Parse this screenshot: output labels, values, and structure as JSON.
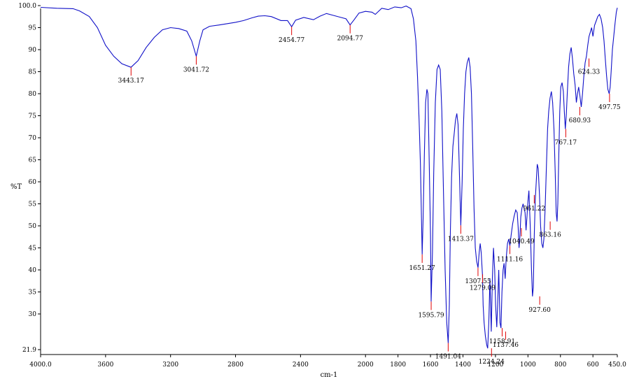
{
  "chart_data": {
    "type": "line",
    "title": "",
    "xlabel": "cm-1",
    "ylabel": "%T",
    "xlim": [
      4000.0,
      450.0
    ],
    "ylim": [
      21.9,
      100.0
    ],
    "x_reversed": true,
    "grid": false,
    "xticks": [
      {
        "value": 4000,
        "label": "4000.0"
      },
      {
        "value": 3600,
        "label": "3600"
      },
      {
        "value": 3200,
        "label": "3200"
      },
      {
        "value": 2800,
        "label": "2800"
      },
      {
        "value": 2400,
        "label": "2400"
      },
      {
        "value": 2000,
        "label": "2000"
      },
      {
        "value": 1800,
        "label": "1800"
      },
      {
        "value": 1600,
        "label": "1600"
      },
      {
        "value": 1400,
        "label": "1400"
      },
      {
        "value": 1200,
        "label": "1200"
      },
      {
        "value": 1000,
        "label": "1000"
      },
      {
        "value": 800,
        "label": "800"
      },
      {
        "value": 600,
        "label": "600"
      },
      {
        "value": 450,
        "label": "450.0"
      }
    ],
    "yticks": [
      {
        "value": 100.0,
        "label": "100.0"
      },
      {
        "value": 95,
        "label": "95"
      },
      {
        "value": 90,
        "label": "90"
      },
      {
        "value": 85,
        "label": "85"
      },
      {
        "value": 80,
        "label": "80"
      },
      {
        "value": 75,
        "label": "75"
      },
      {
        "value": 70,
        "label": "70"
      },
      {
        "value": 65,
        "label": "65"
      },
      {
        "value": 60,
        "label": "60"
      },
      {
        "value": 55,
        "label": "55"
      },
      {
        "value": 50,
        "label": "50"
      },
      {
        "value": 45,
        "label": "45"
      },
      {
        "value": 40,
        "label": "40"
      },
      {
        "value": 35,
        "label": "35"
      },
      {
        "value": 30,
        "label": "30"
      },
      {
        "value": 21.9,
        "label": "21.9"
      }
    ],
    "series": [
      {
        "color": "#1010c8",
        "points": [
          [
            4000,
            99.6
          ],
          [
            3900,
            99.4
          ],
          [
            3800,
            99.3
          ],
          [
            3760,
            98.8
          ],
          [
            3700,
            97.5
          ],
          [
            3650,
            95.0
          ],
          [
            3600,
            91.0
          ],
          [
            3550,
            88.5
          ],
          [
            3500,
            86.8
          ],
          [
            3443.17,
            86.0
          ],
          [
            3400,
            87.5
          ],
          [
            3350,
            90.5
          ],
          [
            3300,
            92.8
          ],
          [
            3250,
            94.5
          ],
          [
            3200,
            95.0
          ],
          [
            3150,
            94.8
          ],
          [
            3100,
            94.2
          ],
          [
            3070,
            92.0
          ],
          [
            3041.72,
            88.5
          ],
          [
            3020,
            92.0
          ],
          [
            3000,
            94.5
          ],
          [
            2960,
            95.3
          ],
          [
            2900,
            95.6
          ],
          [
            2850,
            95.9
          ],
          [
            2800,
            96.2
          ],
          [
            2750,
            96.6
          ],
          [
            2700,
            97.2
          ],
          [
            2660,
            97.6
          ],
          [
            2620,
            97.7
          ],
          [
            2580,
            97.5
          ],
          [
            2520,
            96.6
          ],
          [
            2480,
            96.6
          ],
          [
            2454.77,
            95.2
          ],
          [
            2430,
            96.7
          ],
          [
            2380,
            97.3
          ],
          [
            2320,
            96.8
          ],
          [
            2280,
            97.6
          ],
          [
            2240,
            98.2
          ],
          [
            2200,
            97.8
          ],
          [
            2160,
            97.4
          ],
          [
            2120,
            97.0
          ],
          [
            2094.77,
            95.6
          ],
          [
            2070,
            96.8
          ],
          [
            2040,
            98.3
          ],
          [
            2000,
            98.7
          ],
          [
            1960,
            98.5
          ],
          [
            1940,
            98.0
          ],
          [
            1900,
            99.4
          ],
          [
            1860,
            99.1
          ],
          [
            1820,
            99.7
          ],
          [
            1780,
            99.5
          ],
          [
            1750,
            99.9
          ],
          [
            1720,
            99.3
          ],
          [
            1705,
            97.0
          ],
          [
            1690,
            92.0
          ],
          [
            1680,
            84.0
          ],
          [
            1670,
            74.0
          ],
          [
            1662,
            64.0
          ],
          [
            1651.27,
            43.5
          ],
          [
            1645,
            52.0
          ],
          [
            1638,
            66.0
          ],
          [
            1630,
            78.0
          ],
          [
            1622,
            81.0
          ],
          [
            1616,
            80.0
          ],
          [
            1608,
            65.0
          ],
          [
            1600,
            48.0
          ],
          [
            1595.79,
            32.8
          ],
          [
            1588,
            44.0
          ],
          [
            1580,
            62.0
          ],
          [
            1570,
            78.0
          ],
          [
            1560,
            85.5
          ],
          [
            1550,
            86.5
          ],
          [
            1540,
            85.5
          ],
          [
            1530,
            76.0
          ],
          [
            1520,
            58.0
          ],
          [
            1510,
            40.0
          ],
          [
            1500,
            28.0
          ],
          [
            1491.04,
            23.4
          ],
          [
            1484,
            32.0
          ],
          [
            1478,
            48.0
          ],
          [
            1470,
            61.0
          ],
          [
            1462,
            68.0
          ],
          [
            1454,
            71.0
          ],
          [
            1446,
            74.0
          ],
          [
            1438,
            75.5
          ],
          [
            1430,
            73.0
          ],
          [
            1424,
            65.0
          ],
          [
            1413.37,
            50.1
          ],
          [
            1405,
            60.0
          ],
          [
            1398,
            72.0
          ],
          [
            1390,
            80.0
          ],
          [
            1382,
            85.0
          ],
          [
            1374,
            87.0
          ],
          [
            1364,
            88.2
          ],
          [
            1356,
            86.0
          ],
          [
            1348,
            80.0
          ],
          [
            1340,
            68.0
          ],
          [
            1332,
            54.0
          ],
          [
            1324,
            45.0
          ],
          [
            1316,
            42.0
          ],
          [
            1307.55,
            40.5
          ],
          [
            1300,
            44.0
          ],
          [
            1294,
            46.0
          ],
          [
            1288,
            44.0
          ],
          [
            1280,
            39.0
          ],
          [
            1276,
            32.0
          ],
          [
            1270,
            28.0
          ],
          [
            1262,
            25.0
          ],
          [
            1254,
            23.0
          ],
          [
            1248,
            22.2
          ],
          [
            1241,
            28.0
          ],
          [
            1234,
            38.0
          ],
          [
            1226,
            26.0
          ],
          [
            1219,
            38.0
          ],
          [
            1212,
            45.0
          ],
          [
            1205,
            40.0
          ],
          [
            1199,
            32.0
          ],
          [
            1192,
            27.0
          ],
          [
            1186,
            33.0
          ],
          [
            1180,
            40.0
          ],
          [
            1172,
            28.0
          ],
          [
            1166,
            26.8
          ],
          [
            1160,
            35.0
          ],
          [
            1153,
            40.0
          ],
          [
            1147,
            41.5
          ],
          [
            1140,
            38.0
          ],
          [
            1134,
            42.5
          ],
          [
            1126,
            46.0
          ],
          [
            1118,
            47.0
          ],
          [
            1111.16,
            45.5
          ],
          [
            1103,
            48.0
          ],
          [
            1094,
            50.5
          ],
          [
            1085,
            52.2
          ],
          [
            1075,
            53.6
          ],
          [
            1066,
            53.0
          ],
          [
            1060,
            49.5
          ],
          [
            1055,
            45.0
          ],
          [
            1050,
            47.0
          ],
          [
            1044,
            52.0
          ],
          [
            1037,
            54.0
          ],
          [
            1030,
            55.0
          ],
          [
            1024,
            54.0
          ],
          [
            1018,
            53.0
          ],
          [
            1012,
            49.0
          ],
          [
            1006,
            52.0
          ],
          [
            1000,
            55.5
          ],
          [
            994,
            58.0
          ],
          [
            986,
            50.0
          ],
          [
            978,
            40.0
          ],
          [
            972,
            34.0
          ],
          [
            967,
            36.0
          ],
          [
            961,
            48.0
          ],
          [
            955,
            56.0
          ],
          [
            949,
            60.0
          ],
          [
            943,
            64.0
          ],
          [
            937,
            63.0
          ],
          [
            929,
            57.0
          ],
          [
            922,
            50.0
          ],
          [
            915,
            46.0
          ],
          [
            908,
            45.0
          ],
          [
            902,
            47.0
          ],
          [
            894,
            54.0
          ],
          [
            886,
            64.0
          ],
          [
            879,
            72.0
          ],
          [
            872,
            76.0
          ],
          [
            864,
            79.0
          ],
          [
            856,
            80.5
          ],
          [
            848,
            78.0
          ],
          [
            840,
            72.0
          ],
          [
            832,
            62.0
          ],
          [
            826,
            53.0
          ],
          [
            821,
            51.0
          ],
          [
            816,
            55.0
          ],
          [
            810,
            66.0
          ],
          [
            804,
            76.0
          ],
          [
            798,
            81.5
          ],
          [
            790,
            82.5
          ],
          [
            782,
            80.5
          ],
          [
            776,
            76.0
          ],
          [
            770,
            72.0
          ],
          [
            764,
            75.0
          ],
          [
            758,
            80.0
          ],
          [
            750,
            86.0
          ],
          [
            742,
            89.0
          ],
          [
            734,
            90.5
          ],
          [
            726,
            88.0
          ],
          [
            718,
            84.5
          ],
          [
            710,
            82.0
          ],
          [
            702,
            78.0
          ],
          [
            695,
            80.0
          ],
          [
            688,
            81.5
          ],
          [
            680,
            79.5
          ],
          [
            672,
            77.0
          ],
          [
            664,
            80.0
          ],
          [
            656,
            84.0
          ],
          [
            648,
            87.0
          ],
          [
            640,
            88.5
          ],
          [
            632,
            91.0
          ],
          [
            624,
            93.0
          ],
          [
            616,
            94.0
          ],
          [
            608,
            95.0
          ],
          [
            600,
            93.0
          ],
          [
            590,
            95.5
          ],
          [
            580,
            96.5
          ],
          [
            570,
            97.5
          ],
          [
            560,
            98.0
          ],
          [
            550,
            97.0
          ],
          [
            540,
            95.0
          ],
          [
            532,
            92.0
          ],
          [
            524,
            88.0
          ],
          [
            516,
            84.0
          ],
          [
            508,
            81.0
          ],
          [
            500,
            80.0
          ],
          [
            494,
            81.5
          ],
          [
            488,
            85.0
          ],
          [
            480,
            90.0
          ],
          [
            472,
            93.0
          ],
          [
            464,
            96.0
          ],
          [
            456,
            98.5
          ],
          [
            450,
            99.5
          ]
        ]
      }
    ],
    "peaks": [
      {
        "x": 3443.17,
        "y": 86.0,
        "label": "3443.17"
      },
      {
        "x": 3041.72,
        "y": 88.5,
        "label": "3041.72"
      },
      {
        "x": 2454.77,
        "y": 95.2,
        "label": "2454.77"
      },
      {
        "x": 2094.77,
        "y": 95.6,
        "label": "2094.77"
      },
      {
        "x": 1651.27,
        "y": 43.5,
        "label": "1651.27"
      },
      {
        "x": 1595.79,
        "y": 32.8,
        "label": "1595.79"
      },
      {
        "x": 1491.04,
        "y": 23.4,
        "label": "1491.04"
      },
      {
        "x": 1413.37,
        "y": 50.1,
        "label": "1413.37"
      },
      {
        "x": 1307.55,
        "y": 40.5,
        "label": "1307.55"
      },
      {
        "x": 1279.09,
        "y": 39.0,
        "label": "1279.09"
      },
      {
        "x": 1224.24,
        "y": 22.2,
        "label": "1224.24"
      },
      {
        "x": 1158.91,
        "y": 26.8,
        "label": "1158.91"
      },
      {
        "x": 1137.46,
        "y": 26.0,
        "label": "1137.46"
      },
      {
        "x": 1111.16,
        "y": 45.5,
        "label": "1111.16"
      },
      {
        "x": 1040.49,
        "y": 49.5,
        "label": "1040.49"
      },
      {
        "x": 961.22,
        "y": 57.0,
        "label": "961.22"
      },
      {
        "x": 927.6,
        "y": 34.0,
        "label": "927.60"
      },
      {
        "x": 863.16,
        "y": 51.0,
        "label": "863.16"
      },
      {
        "x": 767.17,
        "y": 72.0,
        "label": "767.17"
      },
      {
        "x": 680.93,
        "y": 77.0,
        "label": "680.93"
      },
      {
        "x": 624.33,
        "y": 88.0,
        "label": "624.33"
      },
      {
        "x": 497.75,
        "y": 80.0,
        "label": "497.75"
      }
    ]
  }
}
